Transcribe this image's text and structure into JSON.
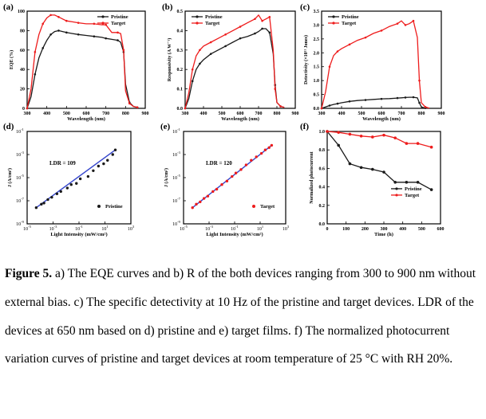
{
  "colors": {
    "pristine": "#1a1a1a",
    "target": "#ee1c1c",
    "fit": "#3344cc",
    "axis": "#000000"
  },
  "caption": {
    "label": "Figure 5.",
    "text": " a) The EQE curves and b) R of the both devices ranging from 300 to 900 nm without external bias. c) The specific detectivity at 10 Hz of the pristine and target devices. LDR of the devices at 650 nm based on d) pristine and e) target films. f) The normalized photocurrent variation curves of pristine and target devices at room temperature of 25 °C with RH 20%."
  },
  "chart_data": [
    {
      "panel": "(a)",
      "type": "line",
      "xlabel": "Wavelength (nm)",
      "ylabel": "EQE (%)",
      "xlim": [
        300,
        900
      ],
      "ylim": [
        0,
        100
      ],
      "xticks": [
        "300",
        "400",
        "500",
        "600",
        "700",
        "800",
        "900"
      ],
      "yticks": [
        "0",
        "20",
        "40",
        "60",
        "80",
        "100"
      ],
      "legend": "top-right",
      "grid": false,
      "x": [
        300,
        320,
        340,
        360,
        380,
        400,
        420,
        440,
        460,
        480,
        500,
        530,
        560,
        600,
        640,
        680,
        700,
        730,
        760,
        775,
        790,
        800,
        820,
        840,
        860
      ],
      "series": [
        {
          "name": "Pristine",
          "values": [
            0,
            12,
            35,
            52,
            62,
            70,
            76,
            79,
            80,
            79,
            78,
            77,
            76,
            75,
            74,
            73,
            72,
            71,
            70,
            68,
            58,
            25,
            6,
            2,
            1
          ]
        },
        {
          "name": "Target",
          "values": [
            0,
            20,
            58,
            76,
            87,
            93,
            96,
            96,
            94,
            92,
            90,
            89,
            88,
            87,
            87,
            86,
            86,
            78,
            78,
            77,
            60,
            18,
            5,
            2,
            1
          ]
        }
      ]
    },
    {
      "panel": "(b)",
      "type": "line",
      "xlabel": "Wavelength (nm)",
      "ylabel": "Responsivity (A W⁻¹)",
      "xlim": [
        300,
        900
      ],
      "ylim": [
        0,
        0.5
      ],
      "xticks": [
        "300",
        "400",
        "500",
        "600",
        "700",
        "800",
        "900"
      ],
      "yticks": [
        "0.0",
        "0.1",
        "0.2",
        "0.3",
        "0.4",
        "0.5"
      ],
      "legend": "top-left",
      "grid": false,
      "x": [
        300,
        320,
        340,
        360,
        380,
        400,
        440,
        480,
        520,
        560,
        600,
        640,
        680,
        700,
        720,
        740,
        760,
        780,
        790,
        800,
        820,
        840
      ],
      "series": [
        {
          "name": "Pristine",
          "values": [
            0,
            0.05,
            0.14,
            0.2,
            0.23,
            0.25,
            0.28,
            0.3,
            0.32,
            0.34,
            0.36,
            0.37,
            0.385,
            0.395,
            0.41,
            0.41,
            0.39,
            0.28,
            0.12,
            0.03,
            0.01,
            0.005
          ]
        },
        {
          "name": "Target",
          "values": [
            0,
            0.08,
            0.2,
            0.27,
            0.3,
            0.32,
            0.34,
            0.36,
            0.38,
            0.4,
            0.42,
            0.44,
            0.46,
            0.48,
            0.45,
            0.46,
            0.47,
            0.3,
            0.1,
            0.03,
            0.01,
            0.005
          ]
        }
      ]
    },
    {
      "panel": "(c)",
      "type": "line",
      "xlabel": "Wavelength (nm)",
      "ylabel": "Detectivity (×10¹¹ Jones)",
      "xlim": [
        300,
        900
      ],
      "ylim": [
        0,
        3.5
      ],
      "xticks": [
        "300",
        "400",
        "500",
        "600",
        "700",
        "800",
        "900"
      ],
      "yticks": [
        "0.0",
        "0.5",
        "1.0",
        "1.5",
        "2.0",
        "2.5",
        "3.0",
        "3.5"
      ],
      "legend": "top-left",
      "grid": false,
      "x": [
        300,
        320,
        340,
        360,
        380,
        400,
        440,
        480,
        520,
        560,
        600,
        640,
        680,
        700,
        720,
        740,
        760,
        780,
        790,
        800,
        820,
        840
      ],
      "series": [
        {
          "name": "Pristine",
          "values": [
            0,
            0.05,
            0.1,
            0.14,
            0.17,
            0.2,
            0.25,
            0.28,
            0.3,
            0.32,
            0.34,
            0.35,
            0.37,
            0.38,
            0.39,
            0.4,
            0.4,
            0.38,
            0.2,
            0.05,
            0.01,
            0.0
          ]
        },
        {
          "name": "Target",
          "values": [
            0,
            0.6,
            1.5,
            1.9,
            2.05,
            2.15,
            2.3,
            2.45,
            2.55,
            2.7,
            2.8,
            2.95,
            3.05,
            3.15,
            3.0,
            3.05,
            3.15,
            2.55,
            1.0,
            0.2,
            0.05,
            0.01
          ]
        }
      ]
    },
    {
      "panel": "(d)",
      "type": "scatter",
      "xlabel": "Light Intensity (mW/cm²)",
      "ylabel": "J (A/cm²)",
      "xlim_log10": [
        -5,
        3
      ],
      "ylim_log10": [
        -9,
        -1
      ],
      "xtick_exponents": [
        -5,
        -3,
        -1,
        1,
        3
      ],
      "ytick_exponents": [
        -9,
        -7,
        -5,
        -3,
        -1
      ],
      "annotation": "LDR = 109",
      "legend": "bottom-right",
      "fit": {
        "x1": -4.3,
        "y1": -7.6,
        "x2": 1.8,
        "y2": -2.6
      },
      "series": [
        {
          "name": "Pristine",
          "x": [
            -4.3,
            -3.9,
            -3.7,
            -3.4,
            -3.1,
            -2.7,
            -2.4,
            -1.9,
            -1.6,
            -1.2,
            -0.9,
            -0.3,
            0.1,
            0.5,
            0.9,
            1.2,
            1.6,
            1.8
          ],
          "y": [
            -7.6,
            -7.3,
            -7.2,
            -6.9,
            -6.7,
            -6.4,
            -6.2,
            -5.9,
            -5.6,
            -5.5,
            -5.1,
            -4.9,
            -4.4,
            -4.0,
            -3.8,
            -3.5,
            -3.0,
            -2.6
          ]
        }
      ]
    },
    {
      "panel": "(e)",
      "type": "scatter",
      "xlabel": "Light Intensity (mW/cm²)",
      "ylabel": "J (A/cm²)",
      "xlim_log10": [
        -5,
        3
      ],
      "ylim_log10": [
        -9,
        -1
      ],
      "xtick_exponents": [
        -5,
        -3,
        -1,
        1,
        3
      ],
      "ytick_exponents": [
        -9,
        -7,
        -5,
        -3,
        -1
      ],
      "annotation": "LDR = 120",
      "legend": "bottom-right",
      "fit": {
        "x1": -4.3,
        "y1": -7.6,
        "x2": 1.9,
        "y2": -2.2
      },
      "series": [
        {
          "name": "Target",
          "x": [
            -4.3,
            -4.0,
            -3.7,
            -3.4,
            -3.1,
            -2.7,
            -2.4,
            -2.0,
            -1.6,
            -1.2,
            -0.9,
            -0.5,
            -0.1,
            0.3,
            0.7,
            1.1,
            1.4,
            1.7,
            1.9
          ],
          "y": [
            -7.6,
            -7.3,
            -7.1,
            -6.8,
            -6.6,
            -6.2,
            -6.0,
            -5.6,
            -5.3,
            -4.9,
            -4.6,
            -4.3,
            -3.9,
            -3.5,
            -3.2,
            -2.9,
            -2.6,
            -2.4,
            -2.2
          ]
        }
      ]
    },
    {
      "panel": "(f)",
      "type": "line",
      "xlabel": "Time (h)",
      "ylabel": "Normalized photocurrent",
      "xlim": [
        0,
        600
      ],
      "ylim": [
        0,
        1.0
      ],
      "xticks": [
        "0",
        "100",
        "200",
        "300",
        "400",
        "500",
        "600"
      ],
      "yticks": [
        "0.0",
        "0.2",
        "0.4",
        "0.6",
        "0.8",
        "1.0"
      ],
      "legend": "center-right",
      "grid": false,
      "x": [
        0,
        60,
        120,
        180,
        240,
        300,
        360,
        420,
        480,
        552
      ],
      "series": [
        {
          "name": "Pristine",
          "values": [
            1.0,
            0.85,
            0.65,
            0.61,
            0.59,
            0.56,
            0.45,
            0.45,
            0.45,
            0.37
          ]
        },
        {
          "name": "Target",
          "values": [
            1.0,
            0.99,
            0.97,
            0.95,
            0.94,
            0.96,
            0.93,
            0.87,
            0.87,
            0.83
          ]
        }
      ]
    }
  ]
}
